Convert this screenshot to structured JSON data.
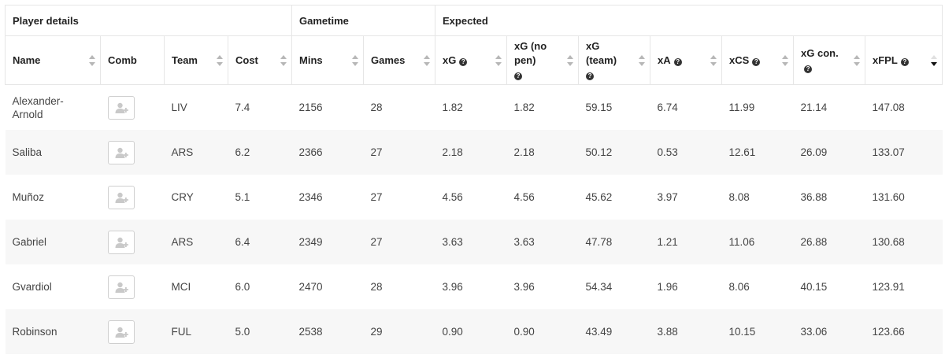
{
  "groups": {
    "player_details": "Player details",
    "gametime": "Gametime",
    "expected": "Expected"
  },
  "columns": {
    "name": "Name",
    "comb": "Comb",
    "team": "Team",
    "cost": "Cost",
    "mins": "Mins",
    "games": "Games",
    "xg": "xG",
    "xg_no_pen": "xG (no pen)",
    "xg_team": "xG (team)",
    "xa": "xA",
    "xcs": "xCS",
    "xg_con": "xG con.",
    "xfpl": "xFPL"
  },
  "sorted_column": "xFPL",
  "sort_direction": "descending",
  "rows": [
    {
      "name": "Alexander-Arnold",
      "team": "LIV",
      "cost": "7.4",
      "mins": "2156",
      "games": "28",
      "xg": "1.82",
      "xg_no_pen": "1.82",
      "xg_team": "59.15",
      "xa": "6.74",
      "xcs": "11.99",
      "xg_con": "21.14",
      "xfpl": "147.08"
    },
    {
      "name": "Saliba",
      "team": "ARS",
      "cost": "6.2",
      "mins": "2366",
      "games": "27",
      "xg": "2.18",
      "xg_no_pen": "2.18",
      "xg_team": "50.12",
      "xa": "0.53",
      "xcs": "12.61",
      "xg_con": "26.09",
      "xfpl": "133.07"
    },
    {
      "name": "Muñoz",
      "team": "CRY",
      "cost": "5.1",
      "mins": "2346",
      "games": "27",
      "xg": "4.56",
      "xg_no_pen": "4.56",
      "xg_team": "45.62",
      "xa": "3.97",
      "xcs": "8.08",
      "xg_con": "36.88",
      "xfpl": "131.60"
    },
    {
      "name": "Gabriel",
      "team": "ARS",
      "cost": "6.4",
      "mins": "2349",
      "games": "27",
      "xg": "3.63",
      "xg_no_pen": "3.63",
      "xg_team": "47.78",
      "xa": "1.21",
      "xcs": "11.06",
      "xg_con": "26.88",
      "xfpl": "130.68"
    },
    {
      "name": "Gvardiol",
      "team": "MCI",
      "cost": "6.0",
      "mins": "2470",
      "games": "28",
      "xg": "3.96",
      "xg_no_pen": "3.96",
      "xg_team": "54.34",
      "xa": "1.96",
      "xcs": "8.06",
      "xg_con": "40.15",
      "xfpl": "123.91"
    },
    {
      "name": "Robinson",
      "team": "FUL",
      "cost": "5.0",
      "mins": "2538",
      "games": "29",
      "xg": "0.90",
      "xg_no_pen": "0.90",
      "xg_team": "43.49",
      "xa": "3.88",
      "xcs": "10.15",
      "xg_con": "33.06",
      "xfpl": "123.66"
    }
  ],
  "icons": {
    "comb_button": "add-user-icon",
    "help": "question-circle-icon",
    "sort": "sort-arrows-icon"
  },
  "colors": {
    "border": "#e6e6e6",
    "row_alt": "#f7f7f7",
    "text": "#444444",
    "sort_active": "#111111"
  }
}
